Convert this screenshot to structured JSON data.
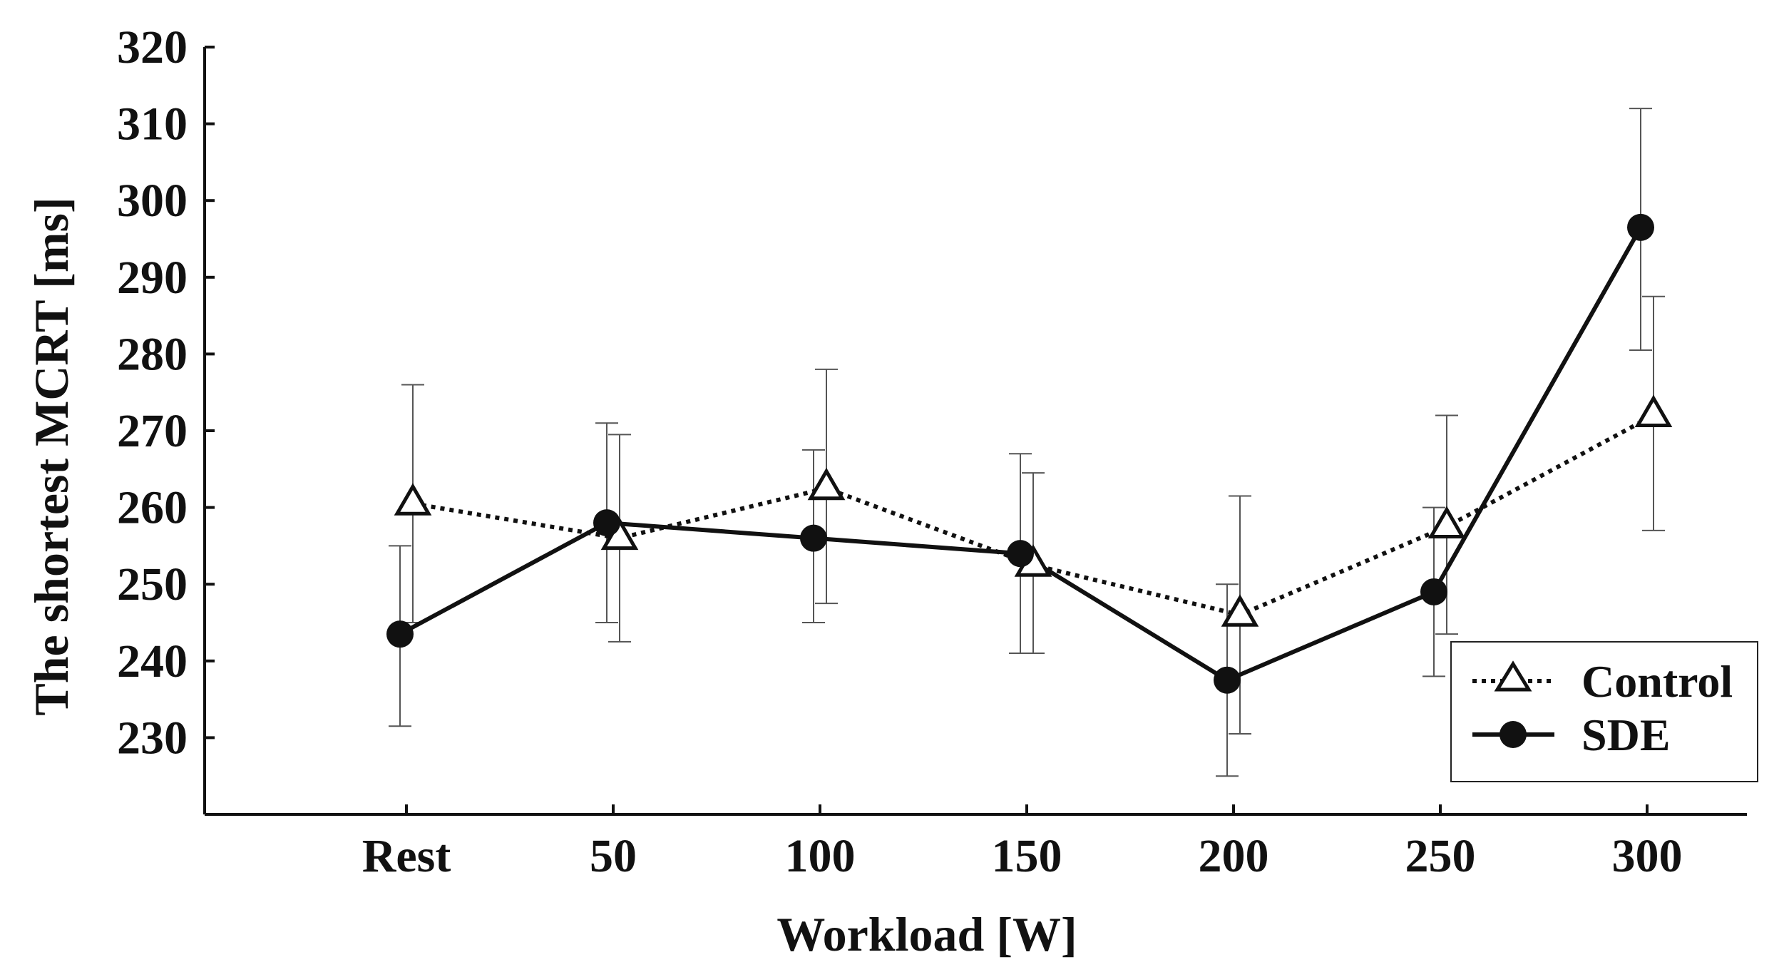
{
  "chart_data": {
    "type": "line",
    "title": "",
    "xlabel": "Workload [W]",
    "ylabel": "The shortest MCRT [ms]",
    "categories": [
      "Rest",
      "50",
      "100",
      "150",
      "200",
      "250",
      "300"
    ],
    "yticks": [
      "230",
      "240",
      "250",
      "260",
      "270",
      "280",
      "290",
      "300",
      "310",
      "320"
    ],
    "ylim": [
      220,
      320
    ],
    "grid": false,
    "legend_position": "bottom-right",
    "series": [
      {
        "name": "Control",
        "line_style": "dotted",
        "marker": "open-triangle",
        "color": "#111111",
        "values": [
          260.5,
          256,
          262.5,
          252.5,
          246,
          257.5,
          272
        ],
        "error_upper": [
          276,
          269.5,
          278,
          264.5,
          261.5,
          272,
          287.5
        ],
        "error_lower": [
          245,
          242.5,
          247.5,
          241,
          230.5,
          243.5,
          257
        ]
      },
      {
        "name": "SDE",
        "line_style": "solid",
        "marker": "filled-circle",
        "color": "#111111",
        "values": [
          243.5,
          258,
          256,
          254,
          237.5,
          249,
          296.5
        ],
        "error_upper": [
          255,
          271,
          267.5,
          267,
          250,
          260,
          312
        ],
        "error_lower": [
          231.5,
          245,
          245,
          241,
          225,
          238,
          280.5
        ]
      }
    ]
  }
}
